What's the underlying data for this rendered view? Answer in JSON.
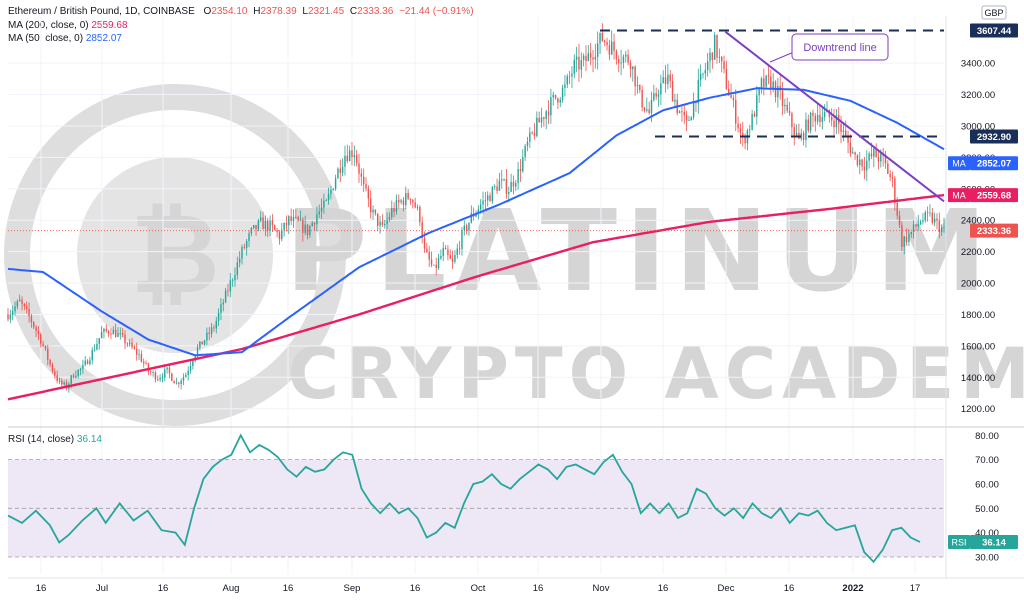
{
  "header": {
    "title": "Ethereum / British Pound, 1D, COINBASE",
    "o_label": "O",
    "o": "2354.10",
    "h_label": "H",
    "h": "2378.39",
    "l_label": "L",
    "l": "2321.45",
    "c_label": "C",
    "c": "2333.36",
    "change": "−21.44 (−0.91%)",
    "ma200_label": "MA (200, close, 0)",
    "ma200_value": "2559.68",
    "ma50_label": "MA (50, close, 0)",
    "ma50_value": "2852.07",
    "rsi_label": "RSI (14, close)",
    "rsi_value": "36.14"
  },
  "currency": "GBP",
  "annotation": "Downtrend line",
  "watermark": {
    "line1": "PLATINUM",
    "line2": "CRYPTO ACADEMY"
  },
  "badges": {
    "resistance_high": "3607.44",
    "resistance_mid": "2932.90",
    "ma50": "2852.07",
    "ma200": "2559.68",
    "last": "2333.36",
    "ma_tag": "MA",
    "rsi_tag": "RSI",
    "rsi": "36.14"
  },
  "colors": {
    "up": "#26a69a",
    "down": "#ef5350",
    "ma200": "#e91e63",
    "ma50": "#2962ff",
    "rsi": "#26a69a",
    "rsi_band": "#ede7f6",
    "trendline": "#7b3fc4",
    "level": "#1a2e5a"
  },
  "chart_data": [
    {
      "type": "candlestick",
      "title": "Ethereum / British Pound, 1D, COINBASE",
      "ylabel": "GBP",
      "x_ticks": [
        "16",
        "Jul",
        "16",
        "Aug",
        "16",
        "Sep",
        "16",
        "Oct",
        "16",
        "Nov",
        "16",
        "Dec",
        "16",
        "2022",
        "17"
      ],
      "y_ticks": [
        1200,
        1400,
        1600,
        1800,
        2000,
        2200,
        2400,
        2600,
        2800,
        3000,
        3200,
        3400
      ],
      "ylim": [
        1090,
        3700
      ],
      "grid": true,
      "close_path_approx": [
        [
          0,
          1800
        ],
        [
          5,
          1880
        ],
        [
          10,
          1760
        ],
        [
          14,
          1640
        ],
        [
          18,
          1480
        ],
        [
          22,
          1360
        ],
        [
          25,
          1340
        ],
        [
          28,
          1420
        ],
        [
          32,
          1460
        ],
        [
          36,
          1560
        ],
        [
          40,
          1680
        ],
        [
          44,
          1700
        ],
        [
          48,
          1660
        ],
        [
          52,
          1600
        ],
        [
          56,
          1540
        ],
        [
          60,
          1440
        ],
        [
          64,
          1400
        ],
        [
          68,
          1440
        ],
        [
          72,
          1360
        ],
        [
          76,
          1420
        ],
        [
          80,
          1560
        ],
        [
          84,
          1640
        ],
        [
          88,
          1720
        ],
        [
          92,
          1880
        ],
        [
          96,
          2040
        ],
        [
          100,
          2200
        ],
        [
          104,
          2320
        ],
        [
          108,
          2380
        ],
        [
          112,
          2360
        ],
        [
          116,
          2300
        ],
        [
          120,
          2400
        ],
        [
          124,
          2380
        ],
        [
          128,
          2330
        ],
        [
          132,
          2440
        ],
        [
          136,
          2500
        ],
        [
          140,
          2680
        ],
        [
          144,
          2820
        ],
        [
          148,
          2840
        ],
        [
          152,
          2600
        ],
        [
          156,
          2440
        ],
        [
          160,
          2340
        ],
        [
          164,
          2460
        ],
        [
          168,
          2520
        ],
        [
          172,
          2560
        ],
        [
          176,
          2420
        ],
        [
          178,
          2200
        ],
        [
          182,
          2080
        ],
        [
          186,
          2200
        ],
        [
          190,
          2120
        ],
        [
          194,
          2300
        ],
        [
          198,
          2420
        ],
        [
          202,
          2500
        ],
        [
          206,
          2560
        ],
        [
          210,
          2640
        ],
        [
          214,
          2600
        ],
        [
          218,
          2700
        ],
        [
          222,
          2880
        ],
        [
          226,
          3000
        ],
        [
          230,
          3100
        ],
        [
          234,
          3180
        ],
        [
          238,
          3240
        ],
        [
          242,
          3380
        ],
        [
          246,
          3400
        ],
        [
          250,
          3480
        ],
        [
          254,
          3560
        ],
        [
          258,
          3500
        ],
        [
          262,
          3440
        ],
        [
          266,
          3420
        ],
        [
          270,
          3180
        ],
        [
          274,
          3080
        ],
        [
          278,
          3240
        ],
        [
          282,
          3300
        ],
        [
          286,
          3120
        ],
        [
          290,
          3000
        ],
        [
          294,
          3200
        ],
        [
          298,
          3360
        ],
        [
          302,
          3520
        ],
        [
          306,
          3320
        ],
        [
          310,
          3120
        ],
        [
          314,
          2900
        ],
        [
          318,
          3040
        ],
        [
          322,
          3260
        ],
        [
          326,
          3280
        ],
        [
          330,
          3180
        ],
        [
          334,
          3040
        ],
        [
          338,
          2900
        ],
        [
          342,
          3020
        ],
        [
          346,
          3080
        ],
        [
          350,
          3060
        ],
        [
          354,
          3040
        ],
        [
          358,
          2920
        ],
        [
          362,
          2800
        ],
        [
          366,
          2760
        ],
        [
          370,
          2820
        ],
        [
          374,
          2780
        ],
        [
          378,
          2640
        ],
        [
          382,
          2260
        ],
        [
          386,
          2320
        ],
        [
          390,
          2400
        ],
        [
          394,
          2420
        ],
        [
          398,
          2360
        ],
        [
          400,
          2333
        ]
      ],
      "series": [
        {
          "name": "MA (200, close, 0)",
          "last": 2559.68,
          "points": [
            [
              0,
              1260
            ],
            [
              50,
              1420
            ],
            [
              100,
              1580
            ],
            [
              150,
              1800
            ],
            [
              200,
              2040
            ],
            [
              250,
              2260
            ],
            [
              300,
              2390
            ],
            [
              350,
              2470
            ],
            [
              400,
              2560
            ]
          ]
        },
        {
          "name": "MA (50, close, 0)",
          "last": 2852.07,
          "points": [
            [
              0,
              2090
            ],
            [
              15,
              2070
            ],
            [
              40,
              1820
            ],
            [
              60,
              1640
            ],
            [
              80,
              1540
            ],
            [
              100,
              1560
            ],
            [
              120,
              1780
            ],
            [
              150,
              2100
            ],
            [
              180,
              2320
            ],
            [
              210,
              2500
            ],
            [
              240,
              2700
            ],
            [
              260,
              2940
            ],
            [
              280,
              3100
            ],
            [
              300,
              3180
            ],
            [
              320,
              3240
            ],
            [
              340,
              3230
            ],
            [
              360,
              3160
            ],
            [
              380,
              3020
            ],
            [
              400,
              2852
            ]
          ]
        }
      ],
      "annotations": {
        "horizontal_levels": [
          3607.44,
          2932.9
        ],
        "downtrend_line": [
          [
            304,
            3600
          ],
          [
            400,
            2520
          ]
        ]
      }
    },
    {
      "type": "line",
      "title": "RSI (14, close)",
      "y_ticks": [
        30,
        40,
        50,
        60,
        70,
        80
      ],
      "ylim": [
        23,
        83
      ],
      "band": [
        30,
        70
      ],
      "series": [
        {
          "name": "RSI (14, close)",
          "last": 36.14,
          "points": [
            [
              0,
              47
            ],
            [
              6,
              44
            ],
            [
              12,
              49
            ],
            [
              18,
              43
            ],
            [
              22,
              36
            ],
            [
              26,
              39
            ],
            [
              32,
              45
            ],
            [
              38,
              50
            ],
            [
              42,
              44
            ],
            [
              48,
              52
            ],
            [
              54,
              45
            ],
            [
              60,
              49
            ],
            [
              66,
              41
            ],
            [
              72,
              40
            ],
            [
              76,
              35
            ],
            [
              80,
              50
            ],
            [
              84,
              62
            ],
            [
              88,
              67
            ],
            [
              92,
              70
            ],
            [
              96,
              72
            ],
            [
              100,
              80
            ],
            [
              104,
              73
            ],
            [
              108,
              76
            ],
            [
              112,
              74
            ],
            [
              116,
              71
            ],
            [
              120,
              66
            ],
            [
              124,
              63
            ],
            [
              128,
              67
            ],
            [
              132,
              65
            ],
            [
              136,
              66
            ],
            [
              140,
              70
            ],
            [
              144,
              73
            ],
            [
              148,
              72
            ],
            [
              152,
              58
            ],
            [
              156,
              52
            ],
            [
              160,
              48
            ],
            [
              164,
              52
            ],
            [
              168,
              48
            ],
            [
              172,
              50
            ],
            [
              176,
              46
            ],
            [
              180,
              38
            ],
            [
              184,
              40
            ],
            [
              188,
              44
            ],
            [
              192,
              42
            ],
            [
              196,
              52
            ],
            [
              200,
              60
            ],
            [
              204,
              61
            ],
            [
              208,
              64
            ],
            [
              212,
              60
            ],
            [
              216,
              58
            ],
            [
              220,
              62
            ],
            [
              224,
              65
            ],
            [
              228,
              68
            ],
            [
              232,
              66
            ],
            [
              236,
              62
            ],
            [
              240,
              67
            ],
            [
              244,
              68
            ],
            [
              248,
              66
            ],
            [
              252,
              64
            ],
            [
              256,
              69
            ],
            [
              260,
              72
            ],
            [
              264,
              65
            ],
            [
              268,
              60
            ],
            [
              272,
              48
            ],
            [
              276,
              52
            ],
            [
              280,
              48
            ],
            [
              284,
              52
            ],
            [
              288,
              46
            ],
            [
              292,
              48
            ],
            [
              296,
              58
            ],
            [
              300,
              56
            ],
            [
              304,
              50
            ],
            [
              308,
              47
            ],
            [
              312,
              50
            ],
            [
              316,
              46
            ],
            [
              320,
              52
            ],
            [
              324,
              48
            ],
            [
              328,
              46
            ],
            [
              332,
              50
            ],
            [
              336,
              44
            ],
            [
              340,
              48
            ],
            [
              344,
              47
            ],
            [
              348,
              49
            ],
            [
              352,
              44
            ],
            [
              356,
              41
            ],
            [
              360,
              42
            ],
            [
              364,
              43
            ],
            [
              368,
              32
            ],
            [
              372,
              28
            ],
            [
              376,
              33
            ],
            [
              380,
              41
            ],
            [
              384,
              42
            ],
            [
              388,
              38
            ],
            [
              392,
              36.14
            ]
          ]
        }
      ]
    }
  ]
}
